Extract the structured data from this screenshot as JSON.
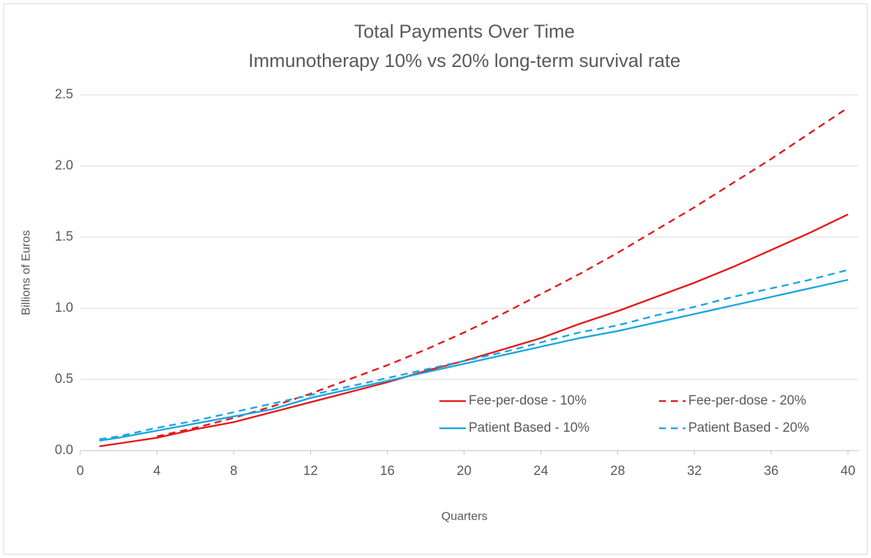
{
  "chart_data": {
    "type": "line",
    "title": "Total Payments Over Time",
    "subtitle": "Immunotherapy 10% vs 20% long-term survival rate",
    "x_label": "Quarters",
    "y_label": "Billions of Euros",
    "x": [
      1,
      2,
      4,
      6,
      8,
      10,
      12,
      14,
      16,
      18,
      20,
      22,
      24,
      26,
      28,
      30,
      32,
      34,
      36,
      38,
      40
    ],
    "series": [
      {
        "name": "Fee-per-dose - 10%",
        "color": "#e41a1c",
        "dash": false,
        "values": [
          0.03,
          0.05,
          0.09,
          0.15,
          0.2,
          0.27,
          0.34,
          0.41,
          0.48,
          0.56,
          0.63,
          0.71,
          0.79,
          0.89,
          0.98,
          1.08,
          1.18,
          1.29,
          1.41,
          1.53,
          1.66
        ]
      },
      {
        "name": "Fee-per-dose - 20%",
        "color": "#e41a1c",
        "dash": true,
        "values": [
          null,
          null,
          0.1,
          0.16,
          0.23,
          0.31,
          0.4,
          0.5,
          0.6,
          0.71,
          0.83,
          0.96,
          1.1,
          1.24,
          1.39,
          1.55,
          1.71,
          1.88,
          2.05,
          2.23,
          2.41
        ]
      },
      {
        "name": "Patient Based - 10%",
        "color": "#1ba6e0",
        "dash": false,
        "values": [
          0.07,
          0.09,
          0.14,
          0.19,
          0.24,
          0.29,
          0.37,
          0.43,
          0.49,
          0.55,
          0.61,
          0.67,
          0.73,
          0.79,
          0.84,
          0.9,
          0.96,
          1.02,
          1.08,
          1.14,
          1.2
        ]
      },
      {
        "name": "Patient Based - 20%",
        "color": "#1ba6e0",
        "dash": true,
        "values": [
          0.08,
          0.1,
          0.16,
          0.21,
          0.27,
          0.33,
          0.39,
          0.45,
          0.51,
          0.57,
          0.63,
          0.69,
          0.76,
          0.83,
          0.88,
          0.95,
          1.01,
          1.08,
          1.14,
          1.2,
          1.27
        ]
      }
    ],
    "xlim": [
      0,
      40
    ],
    "xticks": [
      0,
      4,
      8,
      12,
      16,
      20,
      24,
      28,
      32,
      36,
      40
    ],
    "ylim": [
      0,
      2.5
    ],
    "yticks": [
      {
        "value": 0,
        "label": "0.0"
      },
      0.5,
      {
        "value": 1,
        "label": "1.0"
      },
      1.5,
      {
        "value": 2,
        "label": "2.0"
      },
      2.5
    ],
    "grid": true,
    "legend": "lower right"
  }
}
